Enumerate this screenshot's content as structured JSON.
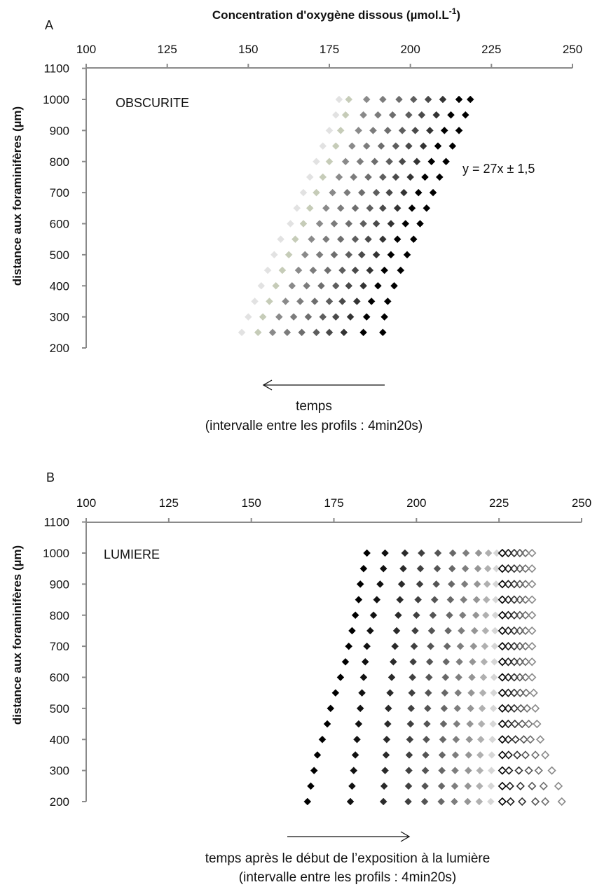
{
  "figure": {
    "top_title": "Concentration d'oxygène dissous  (µmol.L",
    "top_title_sup": "-1",
    "top_title_end": ")"
  },
  "chart_data": [
    {
      "type": "scatter",
      "panel": "A",
      "condition_label": "OBSCURITE",
      "xlabel": "Concentration d'oxygène dissous  (µmol.L-1)",
      "ylabel": "distance aux foraminifères (µm)",
      "xlim": [
        100,
        250
      ],
      "ylim": [
        200,
        1100
      ],
      "x_ticks": [
        100,
        125,
        150,
        175,
        200,
        225,
        250
      ],
      "y_ticks": [
        200,
        300,
        400,
        500,
        600,
        700,
        800,
        900,
        1000,
        1100
      ],
      "x_axis_position": "top",
      "grid": false,
      "legend": "none",
      "annotation": "y = 27x ± 1,5",
      "time_arrow": "left",
      "caption_line1": "temps",
      "caption_line2": "(intervalle entre les profils : 4min20s)",
      "y": [
        250,
        300,
        350,
        400,
        450,
        500,
        550,
        600,
        650,
        700,
        750,
        800,
        850,
        900,
        950,
        1000
      ],
      "series": [
        {
          "x": [
            148,
            150,
            152,
            154,
            156,
            158,
            160,
            163,
            165,
            167,
            169,
            171,
            173,
            175,
            177,
            178
          ],
          "color": "#e2e2e2",
          "marker": "filled-diamond"
        },
        {
          "x": [
            153,
            154.5,
            156.5,
            158.5,
            160.5,
            162.5,
            164.5,
            167,
            169,
            171,
            173,
            175,
            177,
            178.5,
            180,
            181
          ],
          "color": "#c6ccb8",
          "marker": "filled-diamond"
        },
        {
          "x": [
            157.5,
            159.5,
            161.5,
            163.5,
            165.5,
            167.5,
            169.5,
            172,
            174,
            176,
            178,
            180,
            182,
            184,
            185.5,
            186.5
          ],
          "color": "#8a8a8a",
          "marker": "filled-diamond"
        },
        {
          "x": [
            162,
            164,
            166,
            168,
            170,
            172,
            174,
            176.5,
            178.5,
            180.5,
            182.5,
            184.5,
            186.5,
            188.5,
            190,
            191.5
          ],
          "color": "#7c7c7c",
          "marker": "filled-diamond"
        },
        {
          "x": [
            166.5,
            168.5,
            170.5,
            172.5,
            174.5,
            176.5,
            178.5,
            181,
            183,
            185,
            187,
            189,
            191,
            193,
            194.5,
            196.5
          ],
          "color": "#6e6e6e",
          "marker": "filled-diamond"
        },
        {
          "x": [
            171,
            173,
            175,
            177,
            179,
            181,
            183,
            185.5,
            187.5,
            189.5,
            191.5,
            193.5,
            195.5,
            197.5,
            199.5,
            201
          ],
          "color": "#5e5e5e",
          "marker": "filled-diamond"
        },
        {
          "x": [
            175,
            177,
            179,
            181,
            183,
            185,
            187,
            189.5,
            191.5,
            193.5,
            195.5,
            197.5,
            199.5,
            201.5,
            203.5,
            205.5
          ],
          "color": "#4a4a4a",
          "marker": "filled-diamond"
        },
        {
          "x": [
            179.5,
            181.5,
            183.5,
            185.5,
            187.5,
            189.5,
            191.5,
            194,
            196,
            198,
            200,
            202,
            204,
            206,
            208,
            210
          ],
          "color": "#333333",
          "marker": "filled-diamond"
        },
        {
          "x": [
            185.5,
            186.5,
            188,
            190,
            192,
            194,
            196,
            198.5,
            200.5,
            202.5,
            204.5,
            206.5,
            208.5,
            210.5,
            212.5,
            215
          ],
          "color": "#000000",
          "marker": "filled-diamond"
        },
        {
          "x": [
            191.5,
            192,
            193,
            195,
            197,
            199,
            201,
            203,
            205,
            207,
            209,
            211,
            213,
            215,
            217,
            218.5
          ],
          "color": "#000000",
          "marker": "filled-diamond",
          "visible_rows": "partial"
        }
      ]
    },
    {
      "type": "scatter",
      "panel": "B",
      "condition_label": "LUMIERE",
      "xlabel": "",
      "ylabel": "distance aux foraminifères (µm)",
      "xlim": [
        100,
        250
      ],
      "ylim": [
        200,
        1100
      ],
      "x_ticks": [
        100,
        125,
        150,
        175,
        200,
        225,
        250
      ],
      "y_ticks": [
        200,
        300,
        400,
        500,
        600,
        700,
        800,
        900,
        1000,
        1100
      ],
      "x_axis_position": "top",
      "grid": false,
      "legend": "none",
      "time_arrow": "right",
      "caption_line1": "temps après le début de l’exposition à la lumière",
      "caption_line2": "(intervalle entre les profils : 4min20s)",
      "y": [
        200,
        250,
        300,
        350,
        400,
        450,
        500,
        550,
        600,
        650,
        700,
        750,
        800,
        850,
        900,
        950,
        1000
      ],
      "series": [
        {
          "x": [
            167,
            168,
            169,
            170,
            171.5,
            173,
            174,
            175.5,
            177,
            178.5,
            179.5,
            180.5,
            181.5,
            182.5,
            183,
            184,
            185
          ],
          "color": "#000000",
          "marker": "filled-diamond"
        },
        {
          "x": [
            180,
            180.5,
            181,
            181.5,
            182,
            182.5,
            183,
            183.5,
            184,
            184.5,
            185,
            186,
            187,
            188,
            189,
            190,
            190.5
          ],
          "color": "#111111",
          "marker": "filled-diamond"
        },
        {
          "x": [
            190,
            190.2,
            190.5,
            190.8,
            191,
            191.3,
            191.5,
            192,
            192.5,
            193,
            193.5,
            194,
            194.5,
            195,
            195.5,
            196,
            196.5
          ],
          "color": "#2a2a2a",
          "marker": "filled-diamond"
        },
        {
          "x": [
            197.5,
            197.6,
            197.7,
            197.8,
            198,
            198.2,
            198.4,
            198.6,
            198.8,
            199,
            199.3,
            199.6,
            200,
            200.5,
            201,
            201.2,
            201.5
          ],
          "color": "#404040",
          "marker": "filled-diamond"
        },
        {
          "x": [
            202.5,
            202.6,
            202.7,
            202.8,
            203,
            203.2,
            203.4,
            203.6,
            203.8,
            204,
            204.3,
            204.6,
            205,
            205.5,
            206,
            206.3,
            206.5
          ],
          "color": "#555555",
          "marker": "filled-diamond"
        },
        {
          "x": [
            207.5,
            207.6,
            207.7,
            207.8,
            208,
            208.2,
            208.4,
            208.6,
            208.8,
            209,
            209.3,
            209.6,
            210,
            210.3,
            210.6,
            210.8,
            211
          ],
          "color": "#686868",
          "marker": "filled-diamond"
        },
        {
          "x": [
            211.5,
            211.6,
            211.7,
            211.8,
            212,
            212.2,
            212.4,
            212.6,
            212.8,
            213,
            213.3,
            213.6,
            214,
            214.3,
            214.6,
            214.8,
            215
          ],
          "color": "#7e7e7e",
          "marker": "filled-diamond"
        },
        {
          "x": [
            215.5,
            215.6,
            215.7,
            215.8,
            216,
            216.2,
            216.4,
            216.6,
            216.8,
            217,
            217.3,
            217.6,
            218,
            218.2,
            218.4,
            218.6,
            218.8
          ],
          "color": "#959595",
          "marker": "filled-diamond"
        },
        {
          "x": [
            219,
            219.1,
            219.2,
            219.3,
            219.5,
            219.7,
            219.9,
            220.1,
            220.3,
            220.5,
            220.7,
            220.9,
            221,
            221.2,
            221.4,
            221.6,
            221.8
          ],
          "color": "#b0b0b0",
          "marker": "filled-diamond"
        },
        {
          "x": [
            222.5,
            222.6,
            222.7,
            222.8,
            223,
            223.2,
            223.3,
            223.4,
            223.5,
            223.6,
            223.7,
            223.8,
            223.9,
            224,
            224.1,
            224.2,
            224.3
          ],
          "color": "#d6d6d6",
          "marker": "filled-diamond"
        },
        {
          "x": [
            226,
            226,
            226,
            226,
            226,
            226,
            226,
            226,
            226,
            226,
            226,
            226,
            226,
            226,
            226,
            226,
            226
          ],
          "color": "#000000",
          "marker": "open-diamond"
        },
        {
          "x": [
            228.5,
            228.3,
            228,
            227.9,
            227.8,
            227.8,
            227.8,
            227.8,
            227.8,
            227.8,
            227.8,
            227.8,
            227.8,
            227.8,
            227.8,
            227.8,
            227.8
          ],
          "color": "#1a1a1a",
          "marker": "open-diamond"
        },
        {
          "x": [
            232,
            231.5,
            231,
            230.5,
            230,
            229.8,
            229.6,
            229.6,
            229.6,
            229.6,
            229.6,
            229.6,
            229.6,
            229.6,
            229.6,
            229.6,
            229.6
          ],
          "color": "#333333",
          "marker": "open-diamond"
        },
        {
          "x": [
            236,
            235,
            234,
            233,
            232.5,
            232,
            231.6,
            231.4,
            231.3,
            231.3,
            231.3,
            231.3,
            231.3,
            231.3,
            231.3,
            231.3,
            231.3
          ],
          "color": "#555555",
          "marker": "open-diamond"
        },
        {
          "x": [
            239,
            238.5,
            237,
            236,
            234.5,
            234,
            233.5,
            233.2,
            233,
            233,
            233,
            233,
            233,
            233,
            233,
            233,
            233
          ],
          "color": "#707070",
          "marker": "open-diamond"
        },
        {
          "x": [
            244,
            243,
            241,
            239,
            237.5,
            236.5,
            236,
            235.5,
            235,
            235,
            235,
            235,
            235,
            235,
            235,
            235,
            235
          ],
          "color": "#8a8a8a",
          "marker": "open-diamond"
        }
      ]
    }
  ]
}
